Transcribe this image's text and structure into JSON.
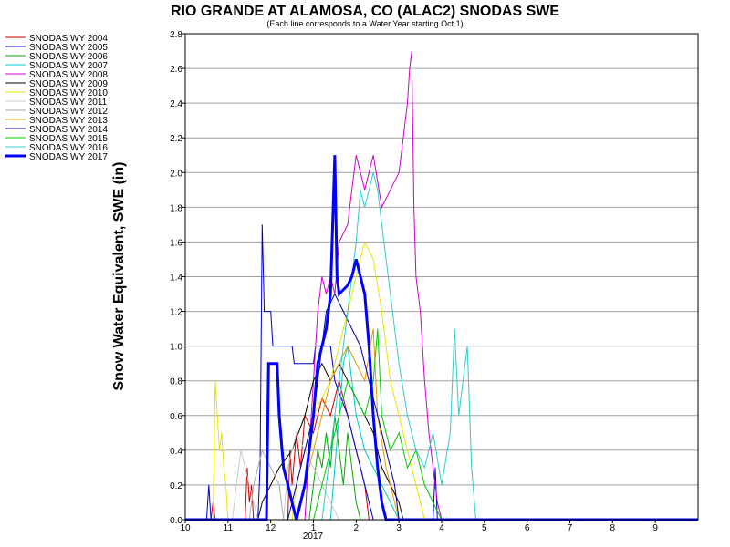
{
  "chart_data": {
    "type": "line",
    "title": "RIO GRANDE AT ALAMOSA, CO (ALAC2) SNODAS SWE",
    "subtitle": "(Each line corresponds to a Water Year starting Oct 1)",
    "ylabel": "Snow Water Equivalent, SWE (in)",
    "xlabel": "",
    "x_tick_labels": [
      "10",
      "11",
      "12",
      "1",
      "2",
      "3",
      "4",
      "5",
      "6",
      "7",
      "8",
      "9"
    ],
    "x_year_label": "2017",
    "x_unit": "month (water year, Oct 1 start)",
    "xlim": [
      0,
      12
    ],
    "ylim": [
      0,
      2.8
    ],
    "y_ticks": [
      0.0,
      0.2,
      0.4,
      0.6,
      0.8,
      1.0,
      1.2,
      1.4,
      1.6,
      1.8,
      2.0,
      2.2,
      2.4,
      2.6,
      2.8
    ],
    "grid": "horizontal",
    "legend_position": "top-left outside",
    "series": [
      {
        "name": "SNODAS WY 2004",
        "color": "#cc0000",
        "width": 1,
        "points": [
          [
            0,
            0
          ],
          [
            0.6,
            0
          ],
          [
            0.65,
            0.1
          ],
          [
            0.7,
            0
          ],
          [
            1.4,
            0
          ],
          [
            1.45,
            0.3
          ],
          [
            1.5,
            0.1
          ],
          [
            1.55,
            0.2
          ],
          [
            1.6,
            0
          ],
          [
            2.4,
            0
          ],
          [
            2.45,
            0.4
          ],
          [
            2.5,
            0.2
          ],
          [
            2.6,
            0.5
          ],
          [
            2.7,
            0.3
          ],
          [
            2.8,
            0.6
          ],
          [
            3.0,
            0.5
          ],
          [
            3.2,
            0.7
          ],
          [
            3.4,
            0.6
          ],
          [
            3.6,
            0.8
          ],
          [
            3.8,
            0.6
          ],
          [
            4.0,
            0.4
          ],
          [
            4.2,
            0.2
          ],
          [
            4.3,
            0
          ],
          [
            12,
            0
          ]
        ]
      },
      {
        "name": "SNODAS WY 2005",
        "color": "#0000cc",
        "width": 1,
        "points": [
          [
            0,
            0
          ],
          [
            0.5,
            0
          ],
          [
            0.55,
            0.2
          ],
          [
            0.6,
            0
          ],
          [
            1.7,
            0
          ],
          [
            1.75,
            0.3
          ],
          [
            1.8,
            1.7
          ],
          [
            1.85,
            1.2
          ],
          [
            2.0,
            1.2
          ],
          [
            2.05,
            1.0
          ],
          [
            2.5,
            1.0
          ],
          [
            2.55,
            0.9
          ],
          [
            3.0,
            0.9
          ],
          [
            3.05,
            1.0
          ],
          [
            3.4,
            1.0
          ],
          [
            3.5,
            0.8
          ],
          [
            3.8,
            0.6
          ],
          [
            4.0,
            0.4
          ],
          [
            4.2,
            0.2
          ],
          [
            4.4,
            0
          ],
          [
            5.8,
            0
          ],
          [
            5.85,
            0.3
          ],
          [
            5.9,
            0
          ],
          [
            12,
            0
          ]
        ]
      },
      {
        "name": "SNODAS WY 2006",
        "color": "#00aa00",
        "width": 1,
        "points": [
          [
            0,
            0
          ],
          [
            2.9,
            0
          ],
          [
            3.0,
            0.2
          ],
          [
            3.1,
            0.4
          ],
          [
            3.2,
            0.3
          ],
          [
            3.3,
            0.5
          ],
          [
            3.4,
            0.3
          ],
          [
            3.5,
            0.6
          ],
          [
            3.6,
            0.4
          ],
          [
            3.7,
            0.2
          ],
          [
            3.8,
            0.5
          ],
          [
            3.9,
            0.3
          ],
          [
            4.0,
            0.1
          ],
          [
            4.1,
            0
          ],
          [
            12,
            0
          ]
        ]
      },
      {
        "name": "SNODAS WY 2007",
        "color": "#00cccc",
        "width": 1,
        "points": [
          [
            0,
            0
          ],
          [
            3.4,
            0
          ],
          [
            3.5,
            0.3
          ],
          [
            3.6,
            0.6
          ],
          [
            3.7,
            0.9
          ],
          [
            3.8,
            1.0
          ],
          [
            3.9,
            0.8
          ],
          [
            4.0,
            0.6
          ],
          [
            4.2,
            0.4
          ],
          [
            4.4,
            0.3
          ],
          [
            4.6,
            0.2
          ],
          [
            4.8,
            0.1
          ],
          [
            5.0,
            0
          ],
          [
            12,
            0
          ]
        ]
      },
      {
        "name": "SNODAS WY 2008",
        "color": "#cc00cc",
        "width": 1,
        "points": [
          [
            0,
            0
          ],
          [
            2.8,
            0
          ],
          [
            3.0,
            0.8
          ],
          [
            3.1,
            1.2
          ],
          [
            3.2,
            1.4
          ],
          [
            3.3,
            1.3
          ],
          [
            3.4,
            1.4
          ],
          [
            3.5,
            1.3
          ],
          [
            3.6,
            1.6
          ],
          [
            3.8,
            1.7
          ],
          [
            3.9,
            1.9
          ],
          [
            4.0,
            2.1
          ],
          [
            4.1,
            2.0
          ],
          [
            4.2,
            1.9
          ],
          [
            4.4,
            2.1
          ],
          [
            4.6,
            1.8
          ],
          [
            4.8,
            1.9
          ],
          [
            5.0,
            2.0
          ],
          [
            5.1,
            2.2
          ],
          [
            5.2,
            2.4
          ],
          [
            5.25,
            2.6
          ],
          [
            5.3,
            2.7
          ],
          [
            5.35,
            1.8
          ],
          [
            5.4,
            1.4
          ],
          [
            5.5,
            1.2
          ],
          [
            5.6,
            0.8
          ],
          [
            5.7,
            0.5
          ],
          [
            5.8,
            0.3
          ],
          [
            5.9,
            0.1
          ],
          [
            6.0,
            0
          ],
          [
            12,
            0
          ]
        ]
      },
      {
        "name": "SNODAS WY 2009",
        "color": "#000000",
        "width": 1,
        "points": [
          [
            0,
            0
          ],
          [
            1.7,
            0
          ],
          [
            1.8,
            0.1
          ],
          [
            2.0,
            0.2
          ],
          [
            2.2,
            0.3
          ],
          [
            2.5,
            0.4
          ],
          [
            2.8,
            0.6
          ],
          [
            3.0,
            0.8
          ],
          [
            3.2,
            0.9
          ],
          [
            3.4,
            0.8
          ],
          [
            3.6,
            0.9
          ],
          [
            3.8,
            0.8
          ],
          [
            4.0,
            0.7
          ],
          [
            4.2,
            0.6
          ],
          [
            4.4,
            0.5
          ],
          [
            4.6,
            0.3
          ],
          [
            4.8,
            0.2
          ],
          [
            5.0,
            0.1
          ],
          [
            5.1,
            0
          ],
          [
            12,
            0
          ]
        ]
      },
      {
        "name": "SNODAS WY 2010",
        "color": "#e6e600",
        "width": 1,
        "points": [
          [
            0,
            0
          ],
          [
            0.65,
            0
          ],
          [
            0.7,
            0.8
          ],
          [
            0.75,
            0.6
          ],
          [
            0.8,
            0.4
          ],
          [
            0.85,
            0.5
          ],
          [
            0.9,
            0.3
          ],
          [
            0.95,
            0.2
          ],
          [
            1.0,
            0
          ],
          [
            2.5,
            0
          ],
          [
            2.6,
            0.2
          ],
          [
            2.8,
            0.4
          ],
          [
            3.0,
            0.6
          ],
          [
            3.2,
            0.7
          ],
          [
            3.4,
            0.8
          ],
          [
            3.6,
            1.0
          ],
          [
            3.8,
            1.2
          ],
          [
            4.0,
            1.4
          ],
          [
            4.2,
            1.6
          ],
          [
            4.4,
            1.5
          ],
          [
            4.6,
            1.2
          ],
          [
            4.8,
            0.8
          ],
          [
            5.0,
            0.6
          ],
          [
            5.2,
            0.4
          ],
          [
            5.4,
            0.2
          ],
          [
            5.6,
            0
          ],
          [
            12,
            0
          ]
        ]
      },
      {
        "name": "SNODAS WY 2011",
        "color": "#cccccc",
        "width": 1,
        "points": [
          [
            0,
            0
          ],
          [
            1.1,
            0
          ],
          [
            1.2,
            0.2
          ],
          [
            1.3,
            0.4
          ],
          [
            1.4,
            0.3
          ],
          [
            1.5,
            0.2
          ],
          [
            1.6,
            0.1
          ],
          [
            1.7,
            0
          ],
          [
            2.3,
            0
          ],
          [
            2.4,
            0.3
          ],
          [
            2.6,
            0.5
          ],
          [
            2.8,
            0.4
          ],
          [
            3.0,
            0.3
          ],
          [
            3.2,
            0.2
          ],
          [
            3.4,
            0.1
          ],
          [
            3.6,
            0
          ],
          [
            12,
            0
          ]
        ]
      },
      {
        "name": "SNODAS WY 2012",
        "color": "#aaaaaa",
        "width": 1,
        "points": [
          [
            0,
            0
          ],
          [
            1.5,
            0
          ],
          [
            1.6,
            0.2
          ],
          [
            1.8,
            0.4
          ],
          [
            2.0,
            0.3
          ],
          [
            2.2,
            0.2
          ],
          [
            2.3,
            0
          ],
          [
            12,
            0
          ]
        ]
      },
      {
        "name": "SNODAS WY 2013",
        "color": "#e69900",
        "width": 1,
        "points": [
          [
            0,
            0
          ],
          [
            2.6,
            0
          ],
          [
            2.8,
            0.2
          ],
          [
            3.0,
            0.4
          ],
          [
            3.2,
            0.6
          ],
          [
            3.4,
            0.8
          ],
          [
            3.6,
            0.9
          ],
          [
            3.8,
            1.0
          ],
          [
            4.0,
            0.9
          ],
          [
            4.2,
            0.8
          ],
          [
            4.4,
            1.1
          ],
          [
            4.5,
            0.6
          ],
          [
            4.7,
            0.3
          ],
          [
            4.9,
            0.1
          ],
          [
            5.0,
            0
          ],
          [
            12,
            0
          ]
        ]
      },
      {
        "name": "SNODAS WY 2014",
        "color": "#000099",
        "width": 1,
        "points": [
          [
            0,
            0
          ],
          [
            2.4,
            0
          ],
          [
            2.6,
            0.2
          ],
          [
            2.8,
            0.4
          ],
          [
            3.0,
            0.6
          ],
          [
            3.1,
            0.8
          ],
          [
            3.2,
            1.0
          ],
          [
            3.3,
            1.2
          ],
          [
            3.5,
            1.3
          ],
          [
            3.7,
            1.2
          ],
          [
            3.9,
            1.1
          ],
          [
            4.1,
            1.0
          ],
          [
            4.3,
            0.8
          ],
          [
            4.5,
            0.6
          ],
          [
            4.7,
            0.4
          ],
          [
            4.9,
            0.2
          ],
          [
            5.0,
            0
          ],
          [
            12,
            0
          ]
        ]
      },
      {
        "name": "SNODAS WY 2015",
        "color": "#00cc00",
        "width": 1,
        "points": [
          [
            0,
            0
          ],
          [
            3.0,
            0
          ],
          [
            3.2,
            0.2
          ],
          [
            3.4,
            0.4
          ],
          [
            3.6,
            0.6
          ],
          [
            3.8,
            0.8
          ],
          [
            4.0,
            0.7
          ],
          [
            4.2,
            0.6
          ],
          [
            4.4,
            0.8
          ],
          [
            4.5,
            1.1
          ],
          [
            4.6,
            0.6
          ],
          [
            4.8,
            0.4
          ],
          [
            5.0,
            0.5
          ],
          [
            5.2,
            0.3
          ],
          [
            5.4,
            0.4
          ],
          [
            5.6,
            0.2
          ],
          [
            5.8,
            0.1
          ],
          [
            6.0,
            0
          ],
          [
            12,
            0
          ]
        ]
      },
      {
        "name": "SNODAS WY 2016",
        "color": "#33cccc",
        "width": 1,
        "points": [
          [
            0,
            0
          ],
          [
            3.2,
            0
          ],
          [
            3.4,
            0.4
          ],
          [
            3.6,
            0.8
          ],
          [
            3.8,
            1.2
          ],
          [
            4.0,
            1.6
          ],
          [
            4.1,
            1.9
          ],
          [
            4.2,
            1.8
          ],
          [
            4.3,
            1.9
          ],
          [
            4.4,
            2.0
          ],
          [
            4.5,
            1.9
          ],
          [
            4.6,
            1.7
          ],
          [
            4.8,
            1.3
          ],
          [
            5.0,
            0.9
          ],
          [
            5.2,
            0.6
          ],
          [
            5.4,
            0.4
          ],
          [
            5.6,
            0.3
          ],
          [
            5.8,
            0.5
          ],
          [
            6.0,
            0.2
          ],
          [
            6.2,
            0.5
          ],
          [
            6.3,
            1.1
          ],
          [
            6.4,
            0.6
          ],
          [
            6.6,
            1.0
          ],
          [
            6.7,
            0.3
          ],
          [
            6.8,
            0
          ],
          [
            12,
            0
          ]
        ]
      },
      {
        "name": "SNODAS WY 2017",
        "color": "#0000ff",
        "width": 3,
        "points": [
          [
            0,
            0
          ],
          [
            1.9,
            0
          ],
          [
            1.95,
            0.9
          ],
          [
            2.15,
            0.9
          ],
          [
            2.2,
            0.6
          ],
          [
            2.3,
            0.3
          ],
          [
            2.4,
            0.2
          ],
          [
            2.5,
            0.1
          ],
          [
            2.6,
            0.0
          ],
          [
            2.8,
            0.2
          ],
          [
            3.0,
            0.6
          ],
          [
            3.1,
            0.9
          ],
          [
            3.2,
            1.0
          ],
          [
            3.3,
            1.1
          ],
          [
            3.4,
            1.3
          ],
          [
            3.5,
            2.1
          ],
          [
            3.55,
            1.4
          ],
          [
            3.6,
            1.3
          ],
          [
            3.8,
            1.35
          ],
          [
            3.9,
            1.4
          ],
          [
            4.0,
            1.5
          ],
          [
            4.1,
            1.4
          ],
          [
            4.2,
            1.3
          ],
          [
            4.3,
            1.0
          ],
          [
            4.4,
            0.6
          ],
          [
            4.5,
            0.3
          ],
          [
            4.6,
            0.1
          ],
          [
            4.7,
            0
          ],
          [
            12,
            0
          ]
        ]
      }
    ]
  }
}
